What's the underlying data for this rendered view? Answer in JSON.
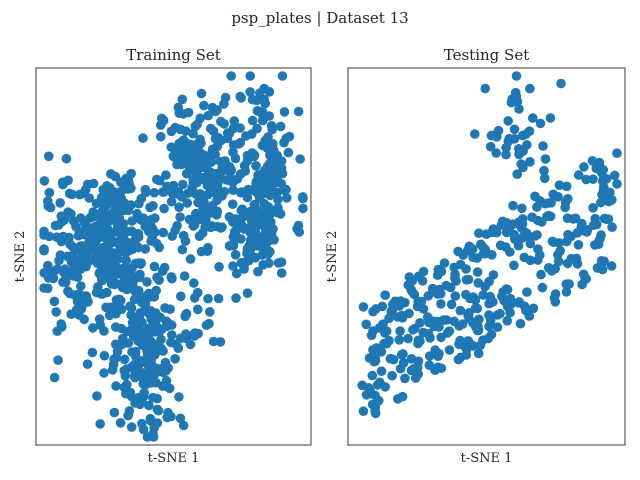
{
  "figure": {
    "suptitle": "psp_plates | Dataset 13",
    "point_color": "#1f77b4"
  },
  "chart_data": [
    {
      "type": "scatter",
      "title": "Training Set",
      "xlabel": "t-SNE 1",
      "ylabel": "t-SNE 2",
      "xlim": [
        0,
        100
      ],
      "ylim": [
        0,
        100
      ],
      "grid": false,
      "legend": "none",
      "clusters": [
        {
          "cx": 62,
          "cy": 72,
          "sx": 9,
          "sy": 10,
          "n": 230
        },
        {
          "cx": 28,
          "cy": 62,
          "sx": 6,
          "sy": 5,
          "n": 90
        },
        {
          "cx": 84,
          "cy": 77,
          "sx": 5,
          "sy": 10,
          "n": 90
        },
        {
          "cx": 80,
          "cy": 56,
          "sx": 6,
          "sy": 7,
          "n": 100
        },
        {
          "cx": 15,
          "cy": 48,
          "sx": 7,
          "sy": 10,
          "n": 150
        },
        {
          "cx": 32,
          "cy": 48,
          "sx": 7,
          "sy": 7,
          "n": 110
        },
        {
          "cx": 40,
          "cy": 25,
          "sx": 7,
          "sy": 11,
          "n": 190
        },
        {
          "cx": 60,
          "cy": 35,
          "sx": 7,
          "sy": 6,
          "n": 25
        }
      ]
    },
    {
      "type": "scatter",
      "title": "Testing Set",
      "xlabel": "t-SNE 1",
      "ylabel": "t-SNE 2",
      "xlim": [
        0,
        100
      ],
      "ylim": [
        0,
        100
      ],
      "grid": false,
      "legend": "none",
      "band": {
        "x0": 7,
        "x1": 95,
        "y_at_x0": 22,
        "y_at_x1": 63,
        "spread": 15,
        "n": 360
      },
      "clusters": [
        {
          "cx": 62,
          "cy": 82,
          "sx": 6,
          "sy": 8,
          "n": 45
        }
      ]
    }
  ]
}
